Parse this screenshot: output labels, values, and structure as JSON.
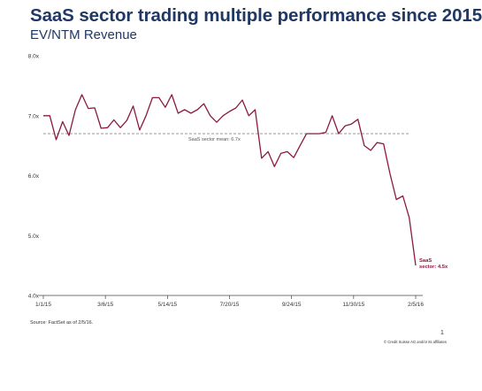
{
  "header": {
    "title": "SaaS sector trading multiple performance since 2015",
    "subtitle": "EV/NTM Revenue"
  },
  "footer": {
    "source": "Source:  FactSet as of 2/5/16.",
    "page_number": "1",
    "copyright": "© Credit Suisse AG and/or its affiliates"
  },
  "colors": {
    "title": "#1f3864",
    "series": "#8b1a3c",
    "mean_line": "#888888",
    "axis": "#444444",
    "label": "#333333"
  },
  "chart_data": {
    "type": "line",
    "title": "SaaS sector trading multiple performance since 2015",
    "subtitle": "EV/NTM Revenue",
    "xlabel": "",
    "ylabel": "",
    "ylim": [
      4.0,
      8.0
    ],
    "y_ticks": [
      "4.0x",
      "5.0x",
      "6.0x",
      "7.0x",
      "8.0x"
    ],
    "x_ticks": [
      "1/1/15",
      "3/6/15",
      "5/14/15",
      "7/20/15",
      "9/24/15",
      "11/30/15",
      "2/5/16"
    ],
    "grid": false,
    "mean_line": {
      "value": 6.7,
      "label": "SaaS sector mean: 6.7x"
    },
    "end_label": [
      "SaaS",
      "sector: 4.5x"
    ],
    "series": [
      {
        "values": [
          7.0,
          7.0,
          6.6,
          6.9,
          6.67,
          7.1,
          7.35,
          7.12,
          7.13,
          6.79,
          6.8,
          6.93,
          6.8,
          6.92,
          7.16,
          6.76,
          7.0,
          7.3,
          7.3,
          7.14,
          7.35,
          7.04,
          7.1,
          7.04,
          7.1,
          7.2,
          7.0,
          6.89,
          7.0,
          7.07,
          7.13,
          7.26,
          7.0,
          7.1,
          6.29,
          6.4,
          6.15,
          6.37,
          6.4,
          6.3,
          6.5,
          6.7,
          6.7,
          6.7,
          6.72,
          7.0,
          6.7,
          6.83,
          6.86,
          6.94,
          6.5,
          6.42,
          6.55,
          6.53,
          6.03,
          5.6,
          5.66,
          5.3,
          4.5
        ]
      }
    ]
  }
}
